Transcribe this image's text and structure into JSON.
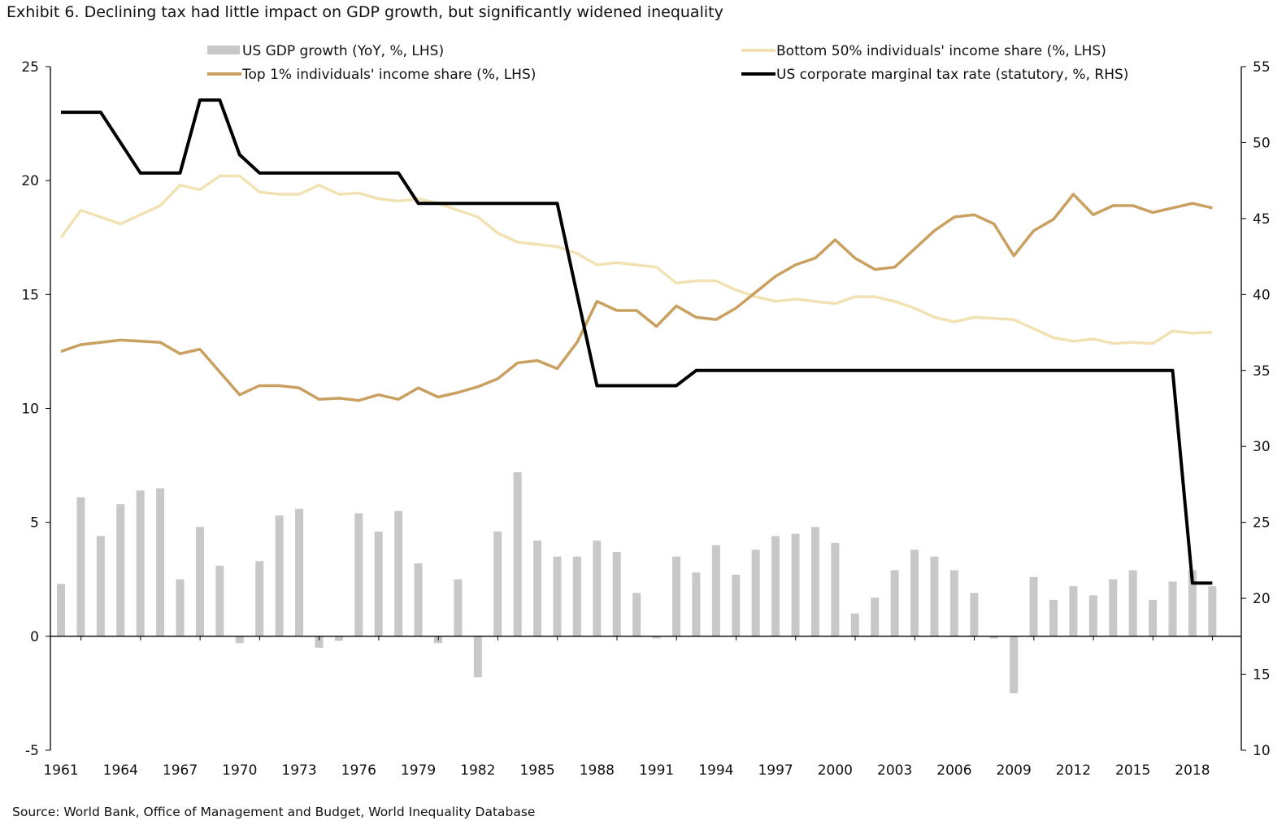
{
  "chart_data": {
    "type": "bar+line",
    "title": "Exhibit 6. Declining tax had little impact on GDP growth, but significantly widened inequality",
    "source": "Source: World Bank, Office of Management and Budget, World Inequality Database",
    "x": [
      1961,
      1962,
      1963,
      1964,
      1965,
      1966,
      1967,
      1968,
      1969,
      1970,
      1971,
      1972,
      1973,
      1974,
      1975,
      1976,
      1977,
      1978,
      1979,
      1980,
      1981,
      1982,
      1983,
      1984,
      1985,
      1986,
      1987,
      1988,
      1989,
      1990,
      1991,
      1992,
      1993,
      1994,
      1995,
      1996,
      1997,
      1998,
      1999,
      2000,
      2001,
      2002,
      2003,
      2004,
      2005,
      2006,
      2007,
      2008,
      2009,
      2010,
      2011,
      2012,
      2013,
      2014,
      2015,
      2016,
      2017,
      2018,
      2019
    ],
    "x_tick_labels": [
      "1961",
      "1964",
      "1967",
      "1970",
      "1973",
      "1976",
      "1979",
      "1982",
      "1985",
      "1988",
      "1991",
      "1994",
      "1997",
      "2000",
      "2003",
      "2006",
      "2009",
      "2012",
      "2015",
      "2018"
    ],
    "left_axis": {
      "ylim": [
        -5,
        25
      ],
      "ticks": [
        "-5",
        "0",
        "5",
        "10",
        "15",
        "20",
        "25"
      ]
    },
    "right_axis": {
      "ylim": [
        10,
        55
      ],
      "ticks": [
        "10",
        "15",
        "20",
        "25",
        "30",
        "35",
        "40",
        "45",
        "50",
        "55"
      ]
    },
    "legend_position": "top",
    "grid": false,
    "series": [
      {
        "name": "US GDP growth (YoY, %, LHS)",
        "type": "bar",
        "axis": "left",
        "color": "#c8c8c8",
        "values": [
          2.3,
          6.1,
          4.4,
          5.8,
          6.4,
          6.5,
          2.5,
          4.8,
          3.1,
          -0.3,
          3.3,
          5.3,
          5.6,
          -0.5,
          -0.2,
          5.4,
          4.6,
          5.5,
          3.2,
          -0.3,
          2.5,
          -1.8,
          4.6,
          7.2,
          4.2,
          3.5,
          3.5,
          4.2,
          3.7,
          1.9,
          -0.1,
          3.5,
          2.8,
          4.0,
          2.7,
          3.8,
          4.4,
          4.5,
          4.8,
          4.1,
          1.0,
          1.7,
          2.9,
          3.8,
          3.5,
          2.9,
          1.9,
          -0.1,
          -2.5,
          2.6,
          1.6,
          2.2,
          1.8,
          2.5,
          2.9,
          1.6,
          2.4,
          2.9,
          2.2
        ]
      },
      {
        "name": "Bottom 50% individuals' income share (%, LHS)",
        "type": "line",
        "axis": "left",
        "color": "#f1e2b3",
        "values": [
          17.5,
          18.7,
          18.4,
          18.1,
          18.5,
          18.9,
          19.8,
          19.6,
          20.2,
          20.2,
          19.5,
          19.4,
          19.4,
          19.8,
          19.4,
          19.45,
          19.2,
          19.1,
          19.2,
          19.0,
          18.7,
          18.4,
          17.7,
          17.3,
          17.2,
          17.1,
          16.8,
          16.3,
          16.4,
          16.3,
          16.2,
          15.5,
          15.6,
          15.6,
          15.2,
          14.9,
          14.7,
          14.8,
          14.7,
          14.6,
          14.9,
          14.9,
          14.7,
          14.4,
          14.0,
          13.8,
          14.0,
          13.95,
          13.9,
          13.5,
          13.1,
          12.95,
          13.05,
          12.85,
          12.9,
          12.85,
          13.4,
          13.3,
          13.35
        ]
      },
      {
        "name": "Top 1% individuals' income share (%, LHS)",
        "type": "line",
        "axis": "left",
        "color": "#c9a060",
        "values": [
          12.5,
          12.8,
          12.9,
          13.0,
          12.95,
          12.9,
          12.4,
          12.6,
          11.6,
          10.6,
          11.0,
          11.0,
          10.9,
          10.4,
          10.45,
          10.35,
          10.6,
          10.4,
          10.9,
          10.5,
          10.7,
          10.95,
          11.3,
          12.0,
          12.1,
          11.75,
          12.9,
          14.7,
          14.3,
          14.3,
          13.6,
          14.5,
          14.0,
          13.9,
          14.4,
          15.1,
          15.8,
          16.3,
          16.6,
          17.4,
          16.6,
          16.1,
          16.2,
          17.0,
          17.8,
          18.4,
          18.5,
          18.1,
          16.7,
          17.8,
          18.3,
          19.4,
          18.5,
          18.9,
          18.9,
          18.6,
          18.8,
          19.0,
          18.8
        ]
      },
      {
        "name": "US corporate marginal tax rate (statutory, %, RHS)",
        "type": "line",
        "axis": "right",
        "color": "#000000",
        "values": [
          52,
          52,
          52,
          50,
          48,
          48,
          48,
          52.8,
          52.8,
          49.2,
          48,
          48,
          48,
          48,
          48,
          48,
          48,
          48,
          46,
          46,
          46,
          46,
          46,
          46,
          46,
          46,
          40,
          34,
          34,
          34,
          34,
          34,
          35,
          35,
          35,
          35,
          35,
          35,
          35,
          35,
          35,
          35,
          35,
          35,
          35,
          35,
          35,
          35,
          35,
          35,
          35,
          35,
          35,
          35,
          35,
          35,
          35,
          21,
          21
        ]
      }
    ]
  }
}
